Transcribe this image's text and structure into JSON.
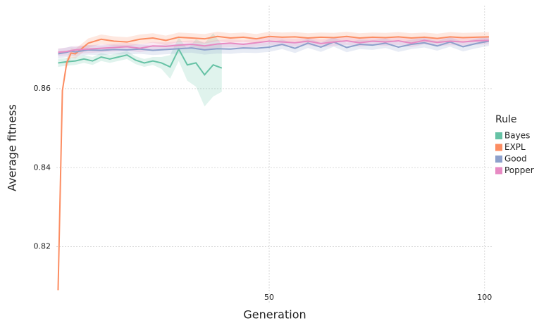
{
  "chart_data": {
    "type": "line",
    "x_label": "Generation",
    "y_label": "Average fitness",
    "legend_title": "Rule",
    "xlim": [
      0.6,
      102
    ],
    "xticks": [
      50,
      100
    ],
    "ylim": [
      0.8055,
      0.881
    ],
    "yticks": [
      0.82,
      0.84,
      0.86
    ],
    "grid": true,
    "legend": "right",
    "series": [
      {
        "name": "Bayes",
        "color": "#66c2a5",
        "x": [
          1,
          3,
          5,
          7,
          9,
          11,
          13,
          15,
          17,
          19,
          21,
          23,
          25,
          27,
          29,
          31,
          33,
          35,
          37,
          39
        ],
        "values": [
          0.8665,
          0.8668,
          0.867,
          0.8675,
          0.867,
          0.868,
          0.8675,
          0.868,
          0.8685,
          0.8672,
          0.8665,
          0.867,
          0.8665,
          0.8655,
          0.87,
          0.866,
          0.8665,
          0.8635,
          0.866,
          0.8652
        ],
        "lower": [
          0.8655,
          0.8658,
          0.866,
          0.8665,
          0.866,
          0.867,
          0.8665,
          0.867,
          0.8675,
          0.8662,
          0.8655,
          0.866,
          0.865,
          0.8625,
          0.867,
          0.862,
          0.8605,
          0.8555,
          0.858,
          0.8592
        ],
        "upper": [
          0.8675,
          0.8678,
          0.868,
          0.8685,
          0.868,
          0.869,
          0.8685,
          0.869,
          0.8695,
          0.8682,
          0.8675,
          0.868,
          0.868,
          0.8685,
          0.873,
          0.87,
          0.8725,
          0.8715,
          0.874,
          0.8712
        ]
      },
      {
        "name": "EXPL",
        "color": "#fc8d62",
        "x": [
          1,
          2,
          3,
          4,
          5,
          8,
          11,
          14,
          17,
          20,
          23,
          26,
          29,
          32,
          35,
          38,
          41,
          44,
          47,
          50,
          53,
          56,
          59,
          62,
          65,
          68,
          71,
          74,
          77,
          80,
          83,
          86,
          89,
          92,
          95,
          98,
          101
        ],
        "values": [
          0.809,
          0.8595,
          0.8665,
          0.869,
          0.8688,
          0.8715,
          0.8725,
          0.872,
          0.8718,
          0.8725,
          0.8728,
          0.8722,
          0.873,
          0.8728,
          0.8726,
          0.8732,
          0.8728,
          0.873,
          0.8726,
          0.8732,
          0.873,
          0.8731,
          0.8728,
          0.873,
          0.8729,
          0.8732,
          0.8728,
          0.873,
          0.8729,
          0.8731,
          0.8728,
          0.873,
          0.8727,
          0.8731,
          0.8729,
          0.873,
          0.8731
        ],
        "lower": [
          0.808,
          0.8585,
          0.8653,
          0.8678,
          0.8676,
          0.8703,
          0.8713,
          0.8708,
          0.8706,
          0.8713,
          0.8716,
          0.871,
          0.8718,
          0.8716,
          0.8714,
          0.872,
          0.8716,
          0.8718,
          0.8714,
          0.872,
          0.8718,
          0.8719,
          0.8716,
          0.8718,
          0.8717,
          0.872,
          0.8716,
          0.8718,
          0.8717,
          0.8719,
          0.8716,
          0.8718,
          0.8715,
          0.8719,
          0.8717,
          0.8718,
          0.8719
        ],
        "upper": [
          0.81,
          0.8605,
          0.8677,
          0.8702,
          0.87,
          0.8727,
          0.8737,
          0.8732,
          0.873,
          0.8737,
          0.874,
          0.8734,
          0.8742,
          0.874,
          0.8738,
          0.8744,
          0.874,
          0.8742,
          0.8738,
          0.8744,
          0.8742,
          0.8743,
          0.874,
          0.8742,
          0.8741,
          0.8744,
          0.874,
          0.8742,
          0.8741,
          0.8743,
          0.874,
          0.8742,
          0.8739,
          0.8743,
          0.8741,
          0.8742,
          0.8743
        ]
      },
      {
        "name": "Good",
        "color": "#8da0cb",
        "x": [
          1,
          2,
          3,
          4,
          5,
          8,
          11,
          14,
          17,
          20,
          23,
          26,
          29,
          32,
          35,
          38,
          41,
          44,
          47,
          50,
          53,
          56,
          59,
          62,
          65,
          68,
          71,
          74,
          77,
          80,
          83,
          86,
          89,
          92,
          95,
          98,
          101
        ],
        "values": [
          0.8688,
          0.869,
          0.8692,
          0.8695,
          0.8693,
          0.8698,
          0.8697,
          0.8699,
          0.8698,
          0.87,
          0.8697,
          0.8699,
          0.8701,
          0.8703,
          0.8698,
          0.8701,
          0.87,
          0.8703,
          0.8702,
          0.8705,
          0.8712,
          0.8702,
          0.8715,
          0.8705,
          0.8718,
          0.8704,
          0.8712,
          0.871,
          0.8715,
          0.8705,
          0.8712,
          0.8716,
          0.8708,
          0.8718,
          0.8706,
          0.8714,
          0.872
        ],
        "lower": [
          0.8676,
          0.8678,
          0.868,
          0.8683,
          0.8681,
          0.8686,
          0.8685,
          0.8687,
          0.8686,
          0.8688,
          0.8685,
          0.8687,
          0.8689,
          0.8691,
          0.8686,
          0.8689,
          0.8688,
          0.8691,
          0.869,
          0.8693,
          0.87,
          0.869,
          0.8703,
          0.8693,
          0.8706,
          0.8692,
          0.87,
          0.8698,
          0.8703,
          0.8693,
          0.87,
          0.8704,
          0.8696,
          0.8706,
          0.8694,
          0.8702,
          0.8708
        ],
        "upper": [
          0.87,
          0.8702,
          0.8704,
          0.8707,
          0.8705,
          0.871,
          0.8709,
          0.8711,
          0.871,
          0.8712,
          0.8709,
          0.8711,
          0.8713,
          0.8715,
          0.871,
          0.8713,
          0.8712,
          0.8715,
          0.8714,
          0.8717,
          0.8724,
          0.8714,
          0.8727,
          0.8717,
          0.873,
          0.8716,
          0.8724,
          0.8722,
          0.8727,
          0.8717,
          0.8724,
          0.8728,
          0.872,
          0.873,
          0.8718,
          0.8726,
          0.8732
        ]
      },
      {
        "name": "Popper",
        "color": "#e78ac3",
        "x": [
          1,
          2,
          3,
          4,
          5,
          8,
          11,
          14,
          17,
          20,
          23,
          26,
          29,
          32,
          35,
          38,
          41,
          44,
          47,
          50,
          53,
          56,
          59,
          62,
          65,
          68,
          71,
          74,
          77,
          80,
          83,
          86,
          89,
          92,
          95,
          98,
          101
        ],
        "values": [
          0.8692,
          0.8693,
          0.8694,
          0.8696,
          0.8698,
          0.87,
          0.8702,
          0.8704,
          0.8706,
          0.8702,
          0.8708,
          0.8707,
          0.871,
          0.8712,
          0.8708,
          0.8713,
          0.8715,
          0.8712,
          0.8716,
          0.872,
          0.8718,
          0.8716,
          0.872,
          0.8714,
          0.8718,
          0.8721,
          0.8716,
          0.872,
          0.8718,
          0.8721,
          0.8715,
          0.8722,
          0.8717,
          0.872,
          0.8718,
          0.8721,
          0.8722
        ],
        "lower": [
          0.8682,
          0.8683,
          0.8684,
          0.8686,
          0.8688,
          0.869,
          0.8692,
          0.8694,
          0.8696,
          0.8692,
          0.8698,
          0.8697,
          0.87,
          0.8702,
          0.8698,
          0.8703,
          0.8705,
          0.8702,
          0.8706,
          0.871,
          0.8708,
          0.8706,
          0.871,
          0.8704,
          0.8708,
          0.8711,
          0.8706,
          0.871,
          0.8708,
          0.8711,
          0.8705,
          0.8712,
          0.8707,
          0.871,
          0.8708,
          0.8711,
          0.8712
        ],
        "upper": [
          0.8702,
          0.8703,
          0.8704,
          0.8706,
          0.8708,
          0.871,
          0.8712,
          0.8714,
          0.8716,
          0.8712,
          0.8718,
          0.8717,
          0.872,
          0.8722,
          0.8718,
          0.8723,
          0.8725,
          0.8722,
          0.8726,
          0.873,
          0.8728,
          0.8726,
          0.873,
          0.8724,
          0.8728,
          0.8731,
          0.8726,
          0.873,
          0.8728,
          0.8731,
          0.8725,
          0.8732,
          0.8727,
          0.873,
          0.8728,
          0.8731,
          0.8732
        ]
      }
    ]
  }
}
